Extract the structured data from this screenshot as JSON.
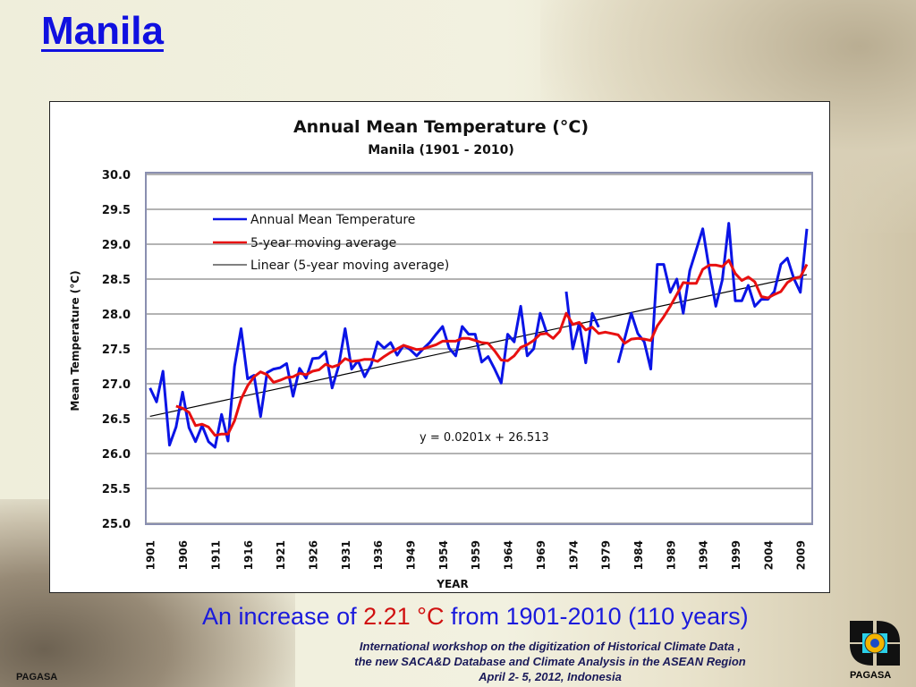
{
  "slide": {
    "title": "Manila",
    "increase_prefix": "An increase of ",
    "increase_value": "2.21 °C",
    "increase_suffix": " from 1901-2010 (110 years)",
    "workshop_lines": [
      "International workshop on the digitization of Historical Climate Data ,",
      "the new SACA&D Database and Climate Analysis  in the ASEAN Region",
      "April 2- 5, 2012, Indonesia"
    ],
    "logo_text": "PAGASA",
    "watermark_left": "PAGASA"
  },
  "chart_data": {
    "type": "line",
    "title": "Annual Mean Temperature (°C)",
    "subtitle": "Manila (1901 - 2010)",
    "xlabel": "YEAR",
    "ylabel": "Mean Temperature (°C)",
    "ylim": [
      25.0,
      30.0
    ],
    "yticks": [
      "25.0",
      "25.5",
      "26.0",
      "26.5",
      "27.0",
      "27.5",
      "28.0",
      "28.5",
      "29.0",
      "29.5",
      "30.0"
    ],
    "xtick_labels": [
      "1901",
      "1906",
      "1911",
      "1916",
      "1921",
      "1926",
      "1931",
      "1936",
      "1949",
      "1954",
      "1959",
      "1964",
      "1969",
      "1974",
      "1979",
      "1984",
      "1989",
      "1994",
      "1999",
      "2004",
      "2009"
    ],
    "grid": true,
    "legend_position": "top-left",
    "categories": [
      1901,
      1902,
      1903,
      1904,
      1905,
      1906,
      1907,
      1908,
      1909,
      1910,
      1911,
      1912,
      1913,
      1914,
      1915,
      1916,
      1917,
      1918,
      1919,
      1920,
      1921,
      1922,
      1923,
      1924,
      1925,
      1926,
      1927,
      1928,
      1929,
      1930,
      1931,
      1932,
      1933,
      1934,
      1935,
      1936,
      1937,
      1938,
      1939,
      1940,
      1949,
      1950,
      1951,
      1952,
      1953,
      1954,
      1955,
      1956,
      1957,
      1958,
      1959,
      1960,
      1961,
      1962,
      1963,
      1964,
      1965,
      1966,
      1967,
      1968,
      1969,
      1970,
      1971,
      1972,
      1973,
      1974,
      1975,
      1976,
      1977,
      1978,
      1979,
      1980,
      1981,
      1982,
      1983,
      1984,
      1985,
      1986,
      1987,
      1988,
      1989,
      1990,
      1991,
      1992,
      1993,
      1994,
      1995,
      1996,
      1997,
      1998,
      1999,
      2000,
      2001,
      2002,
      2003,
      2004,
      2005,
      2006,
      2007,
      2008,
      2009,
      2010
    ],
    "series": [
      {
        "name": "Annual Mean Temperature",
        "color": "#0a14e6",
        "values": [
          26.94,
          26.74,
          27.18,
          26.12,
          26.38,
          26.88,
          26.37,
          26.17,
          26.4,
          26.17,
          26.09,
          26.56,
          26.18,
          27.25,
          27.79,
          27.07,
          27.12,
          26.53,
          27.16,
          27.21,
          27.23,
          27.29,
          26.82,
          27.22,
          27.08,
          27.36,
          27.37,
          27.46,
          26.94,
          27.25,
          27.79,
          27.21,
          27.33,
          27.1,
          27.27,
          27.6,
          27.51,
          27.59,
          27.41,
          27.55,
          27.49,
          27.4,
          27.5,
          27.59,
          27.71,
          27.82,
          27.51,
          27.4,
          27.82,
          27.71,
          27.71,
          27.31,
          27.39,
          27.21,
          27.01,
          27.71,
          27.6,
          28.11,
          27.4,
          27.5,
          28.01,
          27.73,
          null,
          null,
          28.32,
          27.5,
          27.87,
          27.3,
          28.01,
          27.81,
          null,
          null,
          27.3,
          27.65,
          28.01,
          27.72,
          27.6,
          27.21,
          28.71,
          28.71,
          28.31,
          28.5,
          28.01,
          28.62,
          28.92,
          29.22,
          28.64,
          28.11,
          28.49,
          29.3,
          28.19,
          28.19,
          28.41,
          28.11,
          28.21,
          28.21,
          28.32,
          28.71,
          28.8,
          28.51,
          28.31,
          29.22
        ]
      },
      {
        "name": "5-year moving average",
        "color": "#e81010",
        "values": [
          null,
          null,
          null,
          null,
          26.68,
          26.65,
          26.59,
          26.4,
          26.42,
          26.38,
          26.26,
          26.28,
          26.28,
          26.47,
          26.78,
          26.97,
          27.1,
          27.17,
          27.13,
          27.02,
          27.05,
          27.09,
          27.1,
          27.15,
          27.13,
          27.18,
          27.2,
          27.28,
          27.24,
          27.27,
          27.36,
          27.32,
          27.33,
          27.35,
          27.35,
          27.32,
          27.39,
          27.45,
          27.5,
          27.55,
          27.52,
          27.49,
          27.5,
          27.53,
          27.56,
          27.61,
          27.61,
          27.61,
          27.65,
          27.65,
          27.62,
          27.59,
          27.58,
          27.47,
          27.34,
          27.33,
          27.4,
          27.52,
          27.56,
          27.62,
          27.71,
          27.72,
          27.65,
          27.75,
          28.01,
          27.85,
          27.88,
          27.77,
          27.81,
          27.72,
          27.74,
          27.72,
          27.7,
          27.58,
          27.64,
          27.65,
          27.64,
          27.62,
          27.83,
          27.96,
          28.11,
          28.28,
          28.45,
          28.44,
          28.44,
          28.64,
          28.7,
          28.7,
          28.68,
          28.77,
          28.58,
          28.48,
          28.53,
          28.46,
          28.25,
          28.23,
          28.28,
          28.32,
          28.45,
          28.51,
          28.53,
          28.71
        ]
      },
      {
        "name": "Linear (5-year moving average)",
        "color": "#000000",
        "slope": 0.0201,
        "intercept": 26.513
      }
    ],
    "trend_equation": "y = 0.0201x + 26.513"
  }
}
